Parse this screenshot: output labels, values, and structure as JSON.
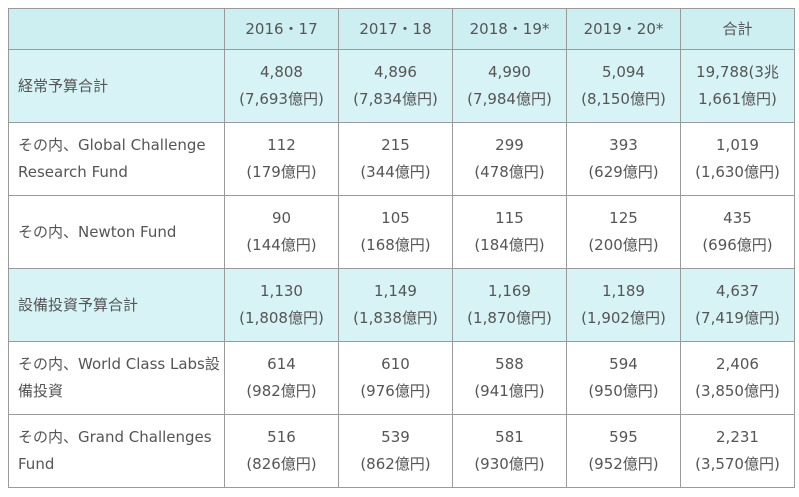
{
  "header": {
    "corner": "",
    "columns": [
      "2016・17",
      "2017・18",
      "2018・19*",
      "2019・20*",
      "合計"
    ]
  },
  "rows": [
    {
      "label": "経常予算合計",
      "highlight": true,
      "cells": [
        {
          "v": "4,808",
          "y": "(7,693億円)"
        },
        {
          "v": "4,896",
          "y": "(7,834億円)"
        },
        {
          "v": "4,990",
          "y": "(7,984億円)"
        },
        {
          "v": "5,094",
          "y": "(8,150億円)"
        },
        {
          "v": "19,788(3兆",
          "y": "1,661億円)"
        }
      ]
    },
    {
      "label": "その内、Global Challenge Research Fund",
      "highlight": false,
      "cells": [
        {
          "v": "112",
          "y": "(179億円)"
        },
        {
          "v": "215",
          "y": "(344億円)"
        },
        {
          "v": "299",
          "y": "(478億円)"
        },
        {
          "v": "393",
          "y": "(629億円)"
        },
        {
          "v": "1,019",
          "y": "(1,630億円)"
        }
      ]
    },
    {
      "label": "その内、Newton Fund",
      "highlight": false,
      "cells": [
        {
          "v": "90",
          "y": "(144億円)"
        },
        {
          "v": "105",
          "y": "(168億円)"
        },
        {
          "v": "115",
          "y": "(184億円)"
        },
        {
          "v": "125",
          "y": "(200億円)"
        },
        {
          "v": "435",
          "y": "(696億円)"
        }
      ]
    },
    {
      "label": "設備投資予算合計",
      "highlight": true,
      "cells": [
        {
          "v": "1,130",
          "y": "(1,808億円)"
        },
        {
          "v": "1,149",
          "y": "(1,838億円)"
        },
        {
          "v": "1,169",
          "y": "(1,870億円)"
        },
        {
          "v": "1,189",
          "y": "(1,902億円)"
        },
        {
          "v": "4,637",
          "y": "(7,419億円)"
        }
      ]
    },
    {
      "label": "その内、World Class Labs設備投資",
      "highlight": false,
      "cells": [
        {
          "v": "614",
          "y": "(982億円)"
        },
        {
          "v": "610",
          "y": "(976億円)"
        },
        {
          "v": "588",
          "y": "(941億円)"
        },
        {
          "v": "594",
          "y": "(950億円)"
        },
        {
          "v": "2,406",
          "y": "(3,850億円)"
        }
      ]
    },
    {
      "label": "その内、Grand Challenges Fund",
      "highlight": false,
      "cells": [
        {
          "v": "516",
          "y": "(826億円)"
        },
        {
          "v": "539",
          "y": "(862億円)"
        },
        {
          "v": "581",
          "y": "(930億円)"
        },
        {
          "v": "595",
          "y": "(952億円)"
        },
        {
          "v": "2,231",
          "y": "(3,570億円)"
        }
      ]
    }
  ]
}
